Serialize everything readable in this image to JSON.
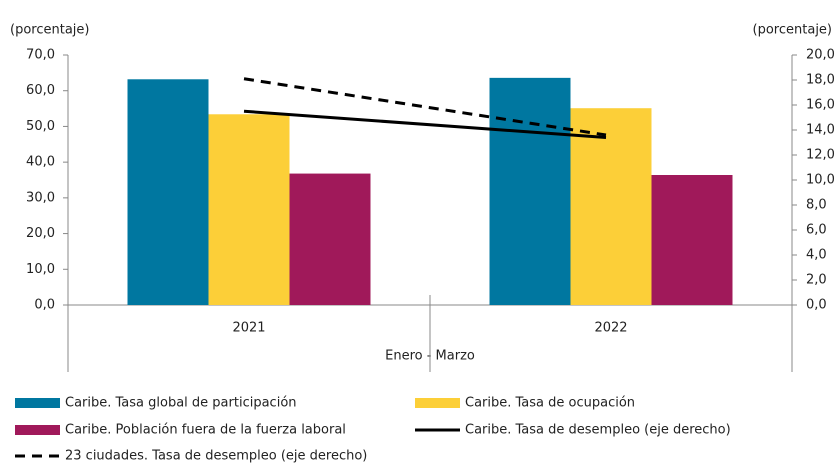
{
  "chart_data": {
    "type": "bar",
    "ylabel": "(porcentaje)",
    "y2label": "(porcentaje)",
    "xlabel": "Enero - Marzo",
    "categories": [
      "2021",
      "2022"
    ],
    "series": [
      {
        "name": "Caribe. Tasa global de participación",
        "color": "#0077a0",
        "values": [
          63.2,
          63.6
        ]
      },
      {
        "name": "Caribe. Tasa de ocupación",
        "color": "#fccf38",
        "values": [
          53.4,
          55.1
        ]
      },
      {
        "name": "Caribe. Población fuera de la fuerza laboral",
        "color": "#a0195a",
        "values": [
          36.8,
          36.4
        ]
      },
      {
        "name": "Caribe. Tasa de desempleo (eje derecho)",
        "color": "#000000",
        "type": "line",
        "axis": "y2",
        "dashed": false,
        "values": [
          15.5,
          13.4
        ]
      },
      {
        "name": "23 ciudades. Tasa de desempleo (eje derecho)",
        "color": "#000000",
        "type": "line",
        "axis": "y2",
        "dashed": true,
        "values": [
          18.1,
          13.6
        ]
      }
    ],
    "ylim": [
      0,
      70
    ],
    "yticks": [
      {
        "value": 0,
        "label": "0,0"
      },
      {
        "value": 10,
        "label": "10,0"
      },
      {
        "value": 20,
        "label": "20,0"
      },
      {
        "value": 30,
        "label": "30,0"
      },
      {
        "value": 40,
        "label": "40,0"
      },
      {
        "value": 50,
        "label": "50,0"
      },
      {
        "value": 60,
        "label": "60,0"
      },
      {
        "value": 70,
        "label": "70,0"
      }
    ],
    "y2lim": [
      0,
      20
    ],
    "y2ticks": [
      {
        "value": 0,
        "label": "0,0"
      },
      {
        "value": 2,
        "label": "2,0"
      },
      {
        "value": 4,
        "label": "4,0"
      },
      {
        "value": 6,
        "label": "6,0"
      },
      {
        "value": 8,
        "label": "8,0"
      },
      {
        "value": 10,
        "label": "10,0"
      },
      {
        "value": 12,
        "label": "12,0"
      },
      {
        "value": 14,
        "label": "14,0"
      },
      {
        "value": 16,
        "label": "16,0"
      },
      {
        "value": 18,
        "label": "18,0"
      },
      {
        "value": 20,
        "label": "20,0"
      }
    ],
    "grid": false
  }
}
